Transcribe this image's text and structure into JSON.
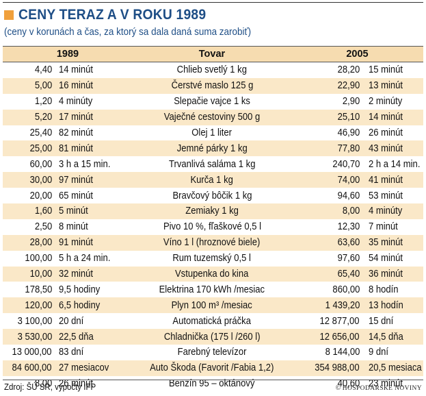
{
  "title": "CENY TERAZ A V ROKU 1989",
  "subtitle": "(ceny v korunách a čas, za ktorý sa dala daná suma zarobiť)",
  "header": {
    "year_1989": "1989",
    "item": "Tovar",
    "year_2005": "2005"
  },
  "rows": [
    {
      "price_1989": "4,40",
      "time_1989": "14 minút",
      "item": "Chlieb svetlý 1 kg",
      "price_2005": "28,20",
      "time_2005": "15 minút"
    },
    {
      "price_1989": "5,00",
      "time_1989": "16 minút",
      "item": "Čerstvé maslo 125 g",
      "price_2005": "22,90",
      "time_2005": "13 minút"
    },
    {
      "price_1989": "1,20",
      "time_1989": "4 minúty",
      "item": "Slepačie vajce 1 ks",
      "price_2005": "2,90",
      "time_2005": "2 minúty"
    },
    {
      "price_1989": "5,20",
      "time_1989": "17 minút",
      "item": "Vaječné cestoviny 500 g",
      "price_2005": "25,10",
      "time_2005": "14 minút"
    },
    {
      "price_1989": "25,40",
      "time_1989": "82 minút",
      "item": "Olej 1 liter",
      "price_2005": "46,90",
      "time_2005": "26 minút"
    },
    {
      "price_1989": "25,00",
      "time_1989": "81 minút",
      "item": "Jemné párky 1 kg",
      "price_2005": "77,80",
      "time_2005": "43 minút"
    },
    {
      "price_1989": "60,00",
      "time_1989": "3 h a 15 min.",
      "item": "Trvanlivá saláma 1 kg",
      "price_2005": "240,70",
      "time_2005": "2 h a 14 min."
    },
    {
      "price_1989": "30,00",
      "time_1989": "97 minút",
      "item": "Kurča 1 kg",
      "price_2005": "74,00",
      "time_2005": "41 minút"
    },
    {
      "price_1989": "20,00",
      "time_1989": "65 minút",
      "item": "Bravčový bôčik 1 kg",
      "price_2005": "94,60",
      "time_2005": "53 minút"
    },
    {
      "price_1989": "1,60",
      "time_1989": "5 minút",
      "item": "Zemiaky 1 kg",
      "price_2005": "8,00",
      "time_2005": "4 minúty"
    },
    {
      "price_1989": "2,50",
      "time_1989": "8 minút",
      "item": "Pivo 10 %, fľaškové 0,5 l",
      "price_2005": "12,30",
      "time_2005": "7 minút"
    },
    {
      "price_1989": "28,00",
      "time_1989": "91 minút",
      "item": "Víno 1 l (hroznové biele)",
      "price_2005": "63,60",
      "time_2005": "35 minút"
    },
    {
      "price_1989": "100,00",
      "time_1989": "5 h a 24 min.",
      "item": "Rum tuzemský 0,5 l",
      "price_2005": "97,60",
      "time_2005": "54 minút"
    },
    {
      "price_1989": "10,00",
      "time_1989": "32 minút",
      "item": "Vstupenka do kina",
      "price_2005": "65,40",
      "time_2005": "36 minút"
    },
    {
      "price_1989": "178,50",
      "time_1989": "9,5 hodiny",
      "item": "Elektrina 170 kWh /mesiac",
      "price_2005": "860,00",
      "time_2005": "8 hodín"
    },
    {
      "price_1989": "120,00",
      "time_1989": "6,5 hodiny",
      "item": "Plyn 100 m³ /mesiac",
      "price_2005": "1 439,20",
      "time_2005": "13 hodín"
    },
    {
      "price_1989": "3 100,00",
      "time_1989": "20 dní",
      "item": "Automatická práčka",
      "price_2005": "12 877,00",
      "time_2005": "15 dní"
    },
    {
      "price_1989": "3 530,00",
      "time_1989": "22,5 dňa",
      "item": "Chladnička (175 l /260 l)",
      "price_2005": "12 656,00",
      "time_2005": "14,5 dňa"
    },
    {
      "price_1989": "13 000,00",
      "time_1989": "83 dní",
      "item": "Farebný televízor",
      "price_2005": "8 144,00",
      "time_2005": "9 dní"
    },
    {
      "price_1989": "84 600,00",
      "time_1989": "27 mesiacov",
      "item": "Auto Škoda (Favorit /Fabia 1,2)",
      "price_2005": "354 988,00",
      "time_2005": "20,5 mesiaca"
    },
    {
      "price_1989": "8,00",
      "time_1989": "26 minút",
      "item": "Benzín 95 – oktánový",
      "price_2005": "40,60",
      "time_2005": "23 minút"
    }
  ],
  "source": "Zdroj: ŠÚ SR, výpočty IFP",
  "credit": "HOSPODÁRSKE NOVINY",
  "credit_symbol": "©",
  "colors": {
    "accent_square": "#f0a03c",
    "title_blue": "#1e4e86",
    "header_bg": "#f6dcb0",
    "stripe_bg": "#fae8c8"
  }
}
